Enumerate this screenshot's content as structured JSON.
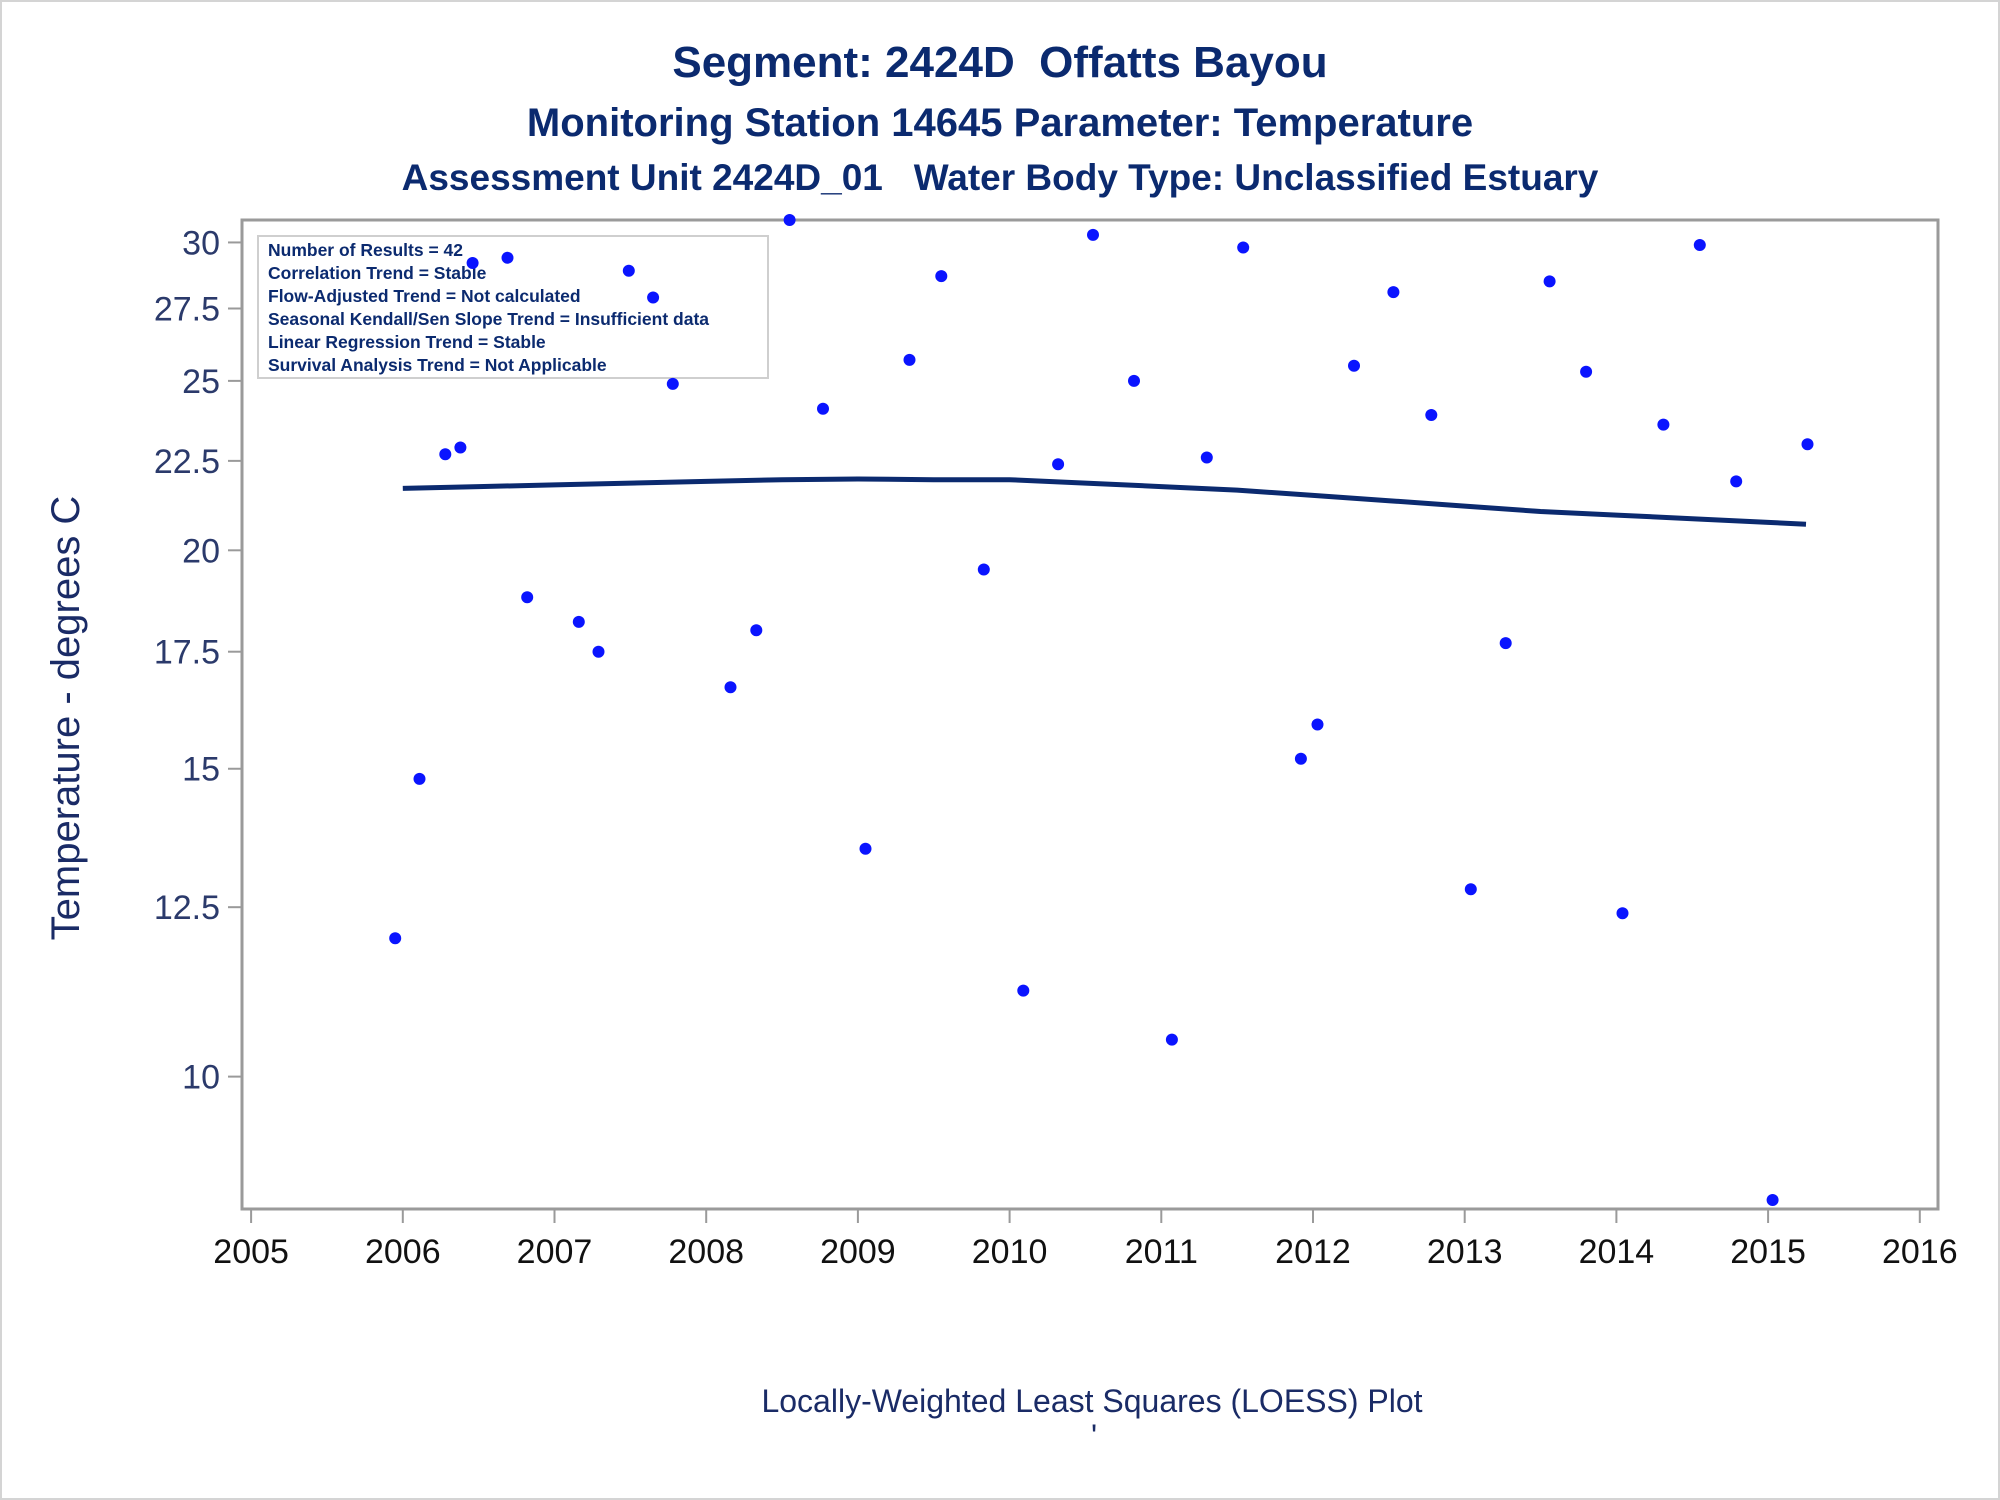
{
  "chart_data": {
    "type": "scatter",
    "title": "Segment: 2424D  Offatts Bayou",
    "subtitle_lines": [
      "Monitoring Station 14645 Parameter: Temperature",
      "Assessment Unit 2424D_01   Water Body Type: Unclassified Estuary"
    ],
    "ylabel": "Temperature - degrees C",
    "footnote": "Locally-Weighted Least Squares (LOESS) Plot",
    "footnote_mark": "'",
    "ylim": [
      8.4,
      30.9
    ],
    "xlim": [
      2004.94,
      2016.12
    ],
    "y_scale": "log",
    "y_ticks": [
      10,
      12.5,
      15,
      17.5,
      20,
      22.5,
      25,
      27.5,
      30
    ],
    "y_tick_labels": [
      "10",
      "12.5",
      "15",
      "17.5",
      "20",
      "22.5",
      "25",
      "27.5",
      "30"
    ],
    "x_ticks": [
      2005,
      2006,
      2007,
      2008,
      2009,
      2010,
      2011,
      2012,
      2013,
      2014,
      2015,
      2016
    ],
    "x_tick_labels": [
      "2005",
      "2006",
      "2007",
      "2008",
      "2009",
      "2010",
      "2011",
      "2012",
      "2013",
      "2014",
      "2015",
      "2016"
    ],
    "grid": false,
    "legend": "none",
    "info_box_position": "top-left",
    "info_box_lines": [
      "Number of Results = 42",
      "Correlation Trend = Stable",
      "Flow-Adjusted Trend = Not calculated",
      "Seasonal Kendall/Sen Slope Trend = Insufficient data",
      "Linear Regression Trend = Stable",
      "Survival Analysis Trend = Not Applicable"
    ],
    "colors": {
      "points": "#0a14ff",
      "loess_line": "#0b2a6f",
      "axis": "#9a9a9a",
      "text": "#0b2a6f"
    },
    "series": [
      {
        "kind": "scatter",
        "x": [
          2005.95,
          2006.11,
          2006.28,
          2006.38,
          2006.46,
          2006.69,
          2006.82,
          2007.16,
          2007.29,
          2007.49,
          2007.65,
          2007.78,
          2008.16,
          2008.33,
          2008.55,
          2008.77,
          2009.05,
          2009.34,
          2009.55,
          2009.83,
          2010.09,
          2010.32,
          2010.55,
          2010.82,
          2011.07,
          2011.3,
          2011.54,
          2011.92,
          2012.03,
          2012.27,
          2012.53,
          2012.78,
          2013.04,
          2013.27,
          2013.56,
          2013.8,
          2014.04,
          2014.31,
          2014.55,
          2014.79,
          2015.03,
          2015.26
        ],
        "y": [
          12.0,
          14.8,
          22.7,
          22.9,
          29.2,
          29.4,
          18.8,
          18.2,
          17.5,
          28.9,
          27.9,
          24.9,
          16.7,
          18.0,
          30.9,
          24.1,
          13.5,
          25.7,
          28.7,
          19.5,
          11.2,
          22.4,
          30.3,
          25.0,
          10.5,
          22.6,
          29.8,
          15.2,
          15.9,
          25.5,
          28.1,
          23.9,
          12.8,
          17.7,
          28.5,
          25.3,
          12.4,
          23.6,
          29.9,
          21.9,
          8.5,
          23.0
        ]
      },
      {
        "kind": "loess_line",
        "x": [
          2006.0,
          2006.5,
          2007.0,
          2007.5,
          2008.0,
          2008.5,
          2009.0,
          2009.5,
          2010.0,
          2010.5,
          2011.0,
          2011.5,
          2012.0,
          2012.5,
          2013.0,
          2013.5,
          2014.0,
          2014.5,
          2015.0,
          2015.25
        ],
        "y": [
          21.7,
          21.75,
          21.8,
          21.85,
          21.9,
          21.95,
          21.97,
          21.95,
          21.95,
          21.85,
          21.75,
          21.65,
          21.5,
          21.35,
          21.2,
          21.05,
          20.95,
          20.85,
          20.75,
          20.7
        ]
      }
    ]
  }
}
